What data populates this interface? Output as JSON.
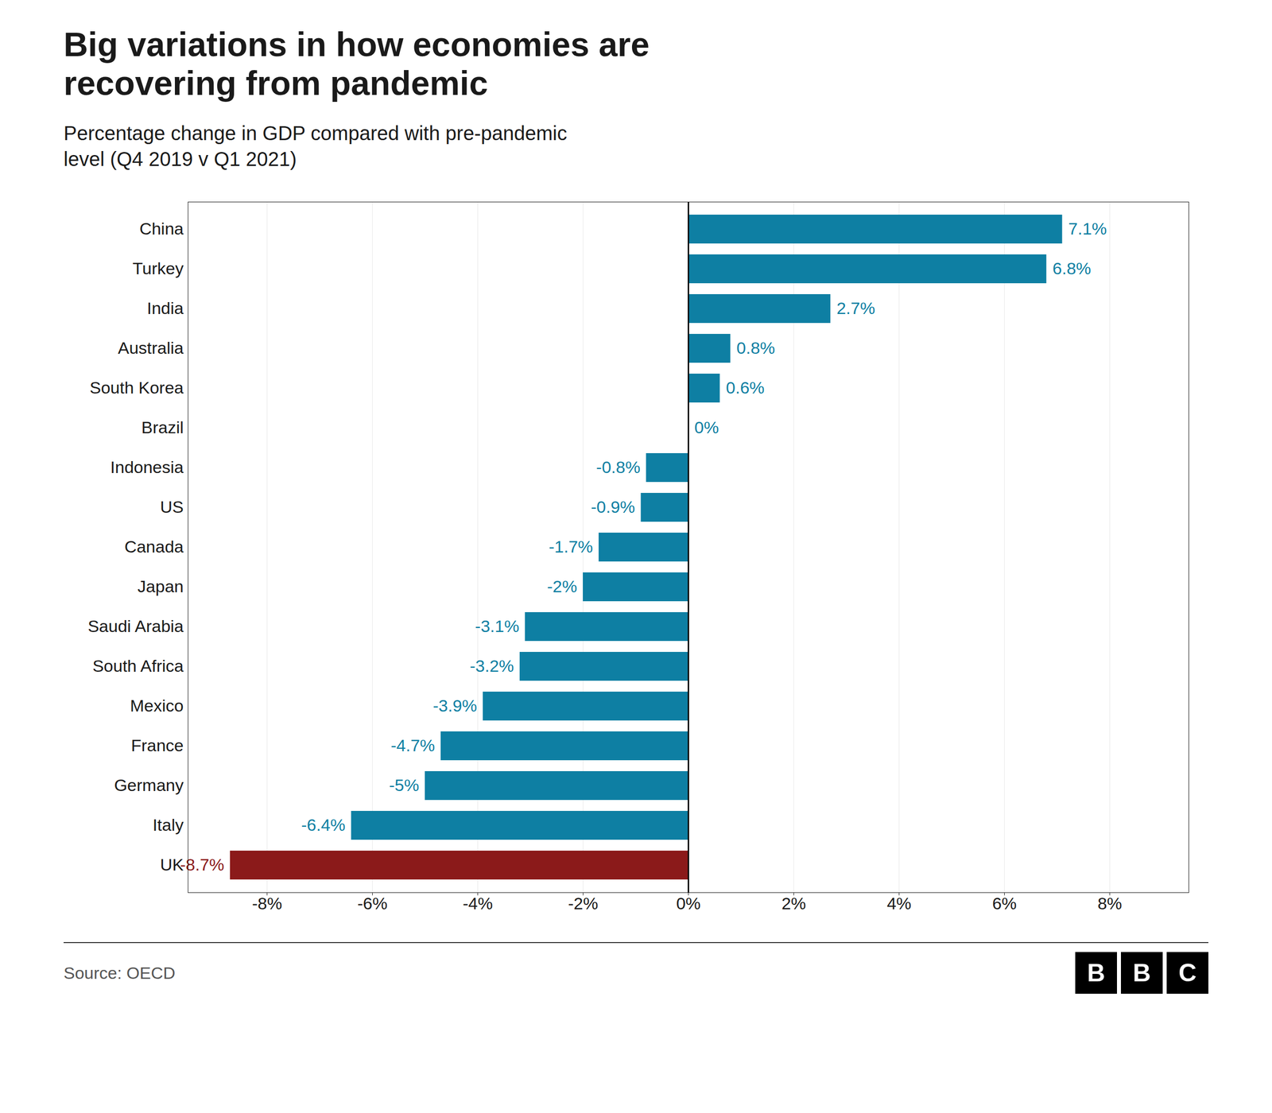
{
  "chart_data": {
    "type": "bar",
    "orientation": "horizontal",
    "title": "Big variations in how economies are\nrecovering from pandemic",
    "subtitle": "Percentage change in GDP compared with pre-pandemic\nlevel (Q4 2019 v Q1 2021)",
    "source": "Source: OECD",
    "annotations": [
      "BBC"
    ],
    "categories": [
      "China",
      "Turkey",
      "India",
      "Australia",
      "South Korea",
      "Brazil",
      "Indonesia",
      "US",
      "Canada",
      "Japan",
      "Saudi Arabia",
      "South Africa",
      "Mexico",
      "France",
      "Germany",
      "Italy",
      "UK"
    ],
    "values": [
      7.1,
      6.8,
      2.7,
      0.8,
      0.6,
      0.0,
      -0.8,
      -0.9,
      -1.7,
      -2.0,
      -3.1,
      -3.2,
      -3.9,
      -4.7,
      -5.0,
      -6.4,
      -8.7
    ],
    "value_labels": [
      "7.1%",
      "6.8%",
      "2.7%",
      "0.8%",
      "0.6%",
      "0%",
      "-0.8%",
      "-0.9%",
      "-1.7%",
      "-2%",
      "-3.1%",
      "-3.2%",
      "-3.9%",
      "-4.7%",
      "-5%",
      "-6.4%",
      "-8.7%"
    ],
    "colors": [
      "#0e7fa3",
      "#0e7fa3",
      "#0e7fa3",
      "#0e7fa3",
      "#0e7fa3",
      "#0e7fa3",
      "#0e7fa3",
      "#0e7fa3",
      "#0e7fa3",
      "#0e7fa3",
      "#0e7fa3",
      "#0e7fa3",
      "#0e7fa3",
      "#0e7fa3",
      "#0e7fa3",
      "#0e7fa3",
      "#8b1a1a"
    ],
    "data_labels": true,
    "xlim": [
      -9.5,
      9.5
    ],
    "xticks": [
      {
        "value": -8,
        "label": "-8%"
      },
      {
        "value": -6,
        "label": "-6%"
      },
      {
        "value": -4,
        "label": "-4%"
      },
      {
        "value": -2,
        "label": "-2%"
      },
      {
        "value": 0,
        "label": "0%"
      },
      {
        "value": 2,
        "label": "2%"
      },
      {
        "value": 4,
        "label": "4%"
      },
      {
        "value": 6,
        "label": "6%"
      },
      {
        "value": 8,
        "label": "8%"
      }
    ],
    "grid": true
  }
}
